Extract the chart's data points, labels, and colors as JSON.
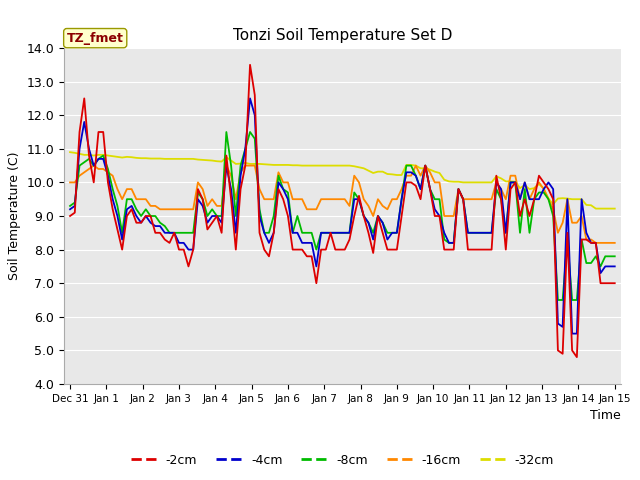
{
  "title": "Tonzi Soil Temperature Set D",
  "xlabel": "Time",
  "ylabel": "Soil Temperature (C)",
  "ylim": [
    4.0,
    14.0
  ],
  "yticks": [
    4.0,
    5.0,
    6.0,
    7.0,
    8.0,
    9.0,
    10.0,
    11.0,
    12.0,
    13.0,
    14.0
  ],
  "legend_label": "TZ_fmet",
  "series_colors": {
    "-2cm": "#dd0000",
    "-4cm": "#0000cc",
    "-8cm": "#00bb00",
    "-16cm": "#ff8800",
    "-32cm": "#dddd00"
  },
  "legend_colors": [
    "#dd0000",
    "#0000cc",
    "#00bb00",
    "#ff8800",
    "#dddd00"
  ],
  "legend_labels": [
    "-2cm",
    "-4cm",
    "-8cm",
    "-16cm",
    "-32cm"
  ],
  "xtick_labels": [
    "Dec 31",
    "Jan 1",
    "Jan 2",
    "Jan 3",
    "Jan 4",
    "Jan 5",
    "Jan 6",
    "Jan 7",
    "Jan 8",
    "Jan 9",
    "Jan 10",
    "Jan 11",
    "Jan 12",
    "Jan 13",
    "Jan 14",
    "Jan 15"
  ],
  "data_2cm": [
    9.0,
    9.1,
    11.5,
    12.5,
    10.8,
    10.0,
    11.5,
    11.5,
    10.0,
    9.2,
    8.6,
    8.0,
    9.0,
    9.2,
    8.8,
    8.8,
    9.0,
    9.0,
    8.5,
    8.5,
    8.3,
    8.2,
    8.5,
    8.0,
    8.0,
    7.5,
    8.0,
    9.8,
    9.5,
    8.6,
    8.8,
    9.0,
    8.5,
    10.8,
    9.5,
    8.0,
    9.8,
    10.5,
    13.5,
    12.6,
    8.5,
    8.0,
    7.8,
    8.5,
    9.8,
    9.5,
    9.0,
    8.0,
    8.0,
    8.0,
    7.8,
    7.8,
    7.0,
    8.0,
    8.0,
    8.5,
    8.0,
    8.0,
    8.0,
    8.3,
    9.0,
    9.6,
    9.0,
    8.5,
    7.9,
    9.0,
    8.5,
    8.0,
    8.0,
    8.0,
    9.0,
    10.0,
    10.0,
    9.9,
    9.5,
    10.5,
    9.8,
    9.0,
    9.0,
    8.0,
    8.0,
    8.0,
    9.8,
    9.5,
    8.0,
    8.0,
    8.0,
    8.0,
    8.0,
    8.0,
    10.2,
    9.5,
    8.0,
    9.8,
    10.0,
    9.0,
    9.5,
    9.0,
    9.5,
    10.2,
    10.0,
    9.8,
    9.5,
    5.0,
    4.9,
    8.5,
    5.0,
    4.8,
    8.3,
    8.3,
    8.2,
    8.2,
    7.0,
    7.0,
    7.0,
    7.0
  ],
  "data_4cm": [
    9.2,
    9.3,
    11.0,
    11.8,
    11.0,
    10.5,
    10.7,
    10.7,
    10.2,
    9.5,
    9.0,
    8.3,
    9.2,
    9.3,
    9.0,
    8.8,
    9.0,
    8.8,
    8.7,
    8.7,
    8.5,
    8.5,
    8.5,
    8.2,
    8.2,
    8.0,
    8.0,
    9.5,
    9.3,
    8.8,
    9.0,
    9.0,
    8.8,
    10.5,
    9.8,
    8.5,
    10.2,
    11.0,
    12.5,
    12.0,
    9.0,
    8.5,
    8.2,
    8.5,
    10.0,
    9.8,
    9.5,
    8.5,
    8.5,
    8.2,
    8.2,
    8.2,
    7.5,
    8.5,
    8.5,
    8.5,
    8.5,
    8.5,
    8.5,
    8.5,
    9.5,
    9.5,
    9.0,
    8.8,
    8.3,
    9.0,
    8.8,
    8.3,
    8.5,
    8.5,
    9.5,
    10.3,
    10.3,
    10.2,
    9.8,
    10.5,
    9.8,
    9.2,
    9.0,
    8.5,
    8.2,
    8.2,
    9.8,
    9.5,
    8.5,
    8.5,
    8.5,
    8.5,
    8.5,
    8.5,
    10.0,
    9.8,
    8.5,
    10.0,
    10.0,
    9.5,
    10.0,
    9.5,
    9.5,
    9.5,
    9.8,
    10.0,
    9.8,
    5.8,
    5.7,
    9.5,
    5.5,
    5.5,
    9.5,
    8.5,
    8.2,
    8.2,
    7.3,
    7.5,
    7.5,
    7.5
  ],
  "data_8cm": [
    9.3,
    9.4,
    10.5,
    10.6,
    10.7,
    10.5,
    10.7,
    10.8,
    10.4,
    9.8,
    9.3,
    8.5,
    9.5,
    9.5,
    9.2,
    9.0,
    9.2,
    9.0,
    9.0,
    8.8,
    8.7,
    8.5,
    8.5,
    8.5,
    8.5,
    8.5,
    8.5,
    9.7,
    9.5,
    9.0,
    9.2,
    9.0,
    9.0,
    11.5,
    10.5,
    9.0,
    10.5,
    11.0,
    11.5,
    11.3,
    9.2,
    8.5,
    8.5,
    9.0,
    10.2,
    9.8,
    9.7,
    8.5,
    9.0,
    8.5,
    8.5,
    8.5,
    8.0,
    8.5,
    8.5,
    8.5,
    8.5,
    8.5,
    8.5,
    8.5,
    9.7,
    9.5,
    9.0,
    8.8,
    8.5,
    9.0,
    8.8,
    8.5,
    8.5,
    8.5,
    9.5,
    10.5,
    10.5,
    10.2,
    9.8,
    10.5,
    9.8,
    9.5,
    9.5,
    8.3,
    8.2,
    8.2,
    9.8,
    9.5,
    8.5,
    8.5,
    8.5,
    8.5,
    8.5,
    8.5,
    9.8,
    9.5,
    8.5,
    10.0,
    10.0,
    8.5,
    9.8,
    8.5,
    9.5,
    9.7,
    9.7,
    9.5,
    9.0,
    6.5,
    6.5,
    8.3,
    6.5,
    6.5,
    8.3,
    7.6,
    7.6,
    7.8,
    7.5,
    7.8,
    7.8,
    7.8
  ],
  "data_16cm": [
    10.0,
    10.0,
    10.2,
    10.3,
    10.4,
    10.5,
    10.4,
    10.4,
    10.3,
    10.2,
    9.8,
    9.5,
    9.8,
    9.8,
    9.5,
    9.5,
    9.5,
    9.3,
    9.3,
    9.2,
    9.2,
    9.2,
    9.2,
    9.2,
    9.2,
    9.2,
    9.2,
    10.0,
    9.8,
    9.3,
    9.5,
    9.3,
    9.3,
    10.5,
    10.2,
    9.5,
    10.3,
    10.5,
    10.5,
    10.5,
    9.8,
    9.5,
    9.5,
    9.5,
    10.3,
    10.0,
    10.0,
    9.5,
    9.5,
    9.5,
    9.2,
    9.2,
    9.2,
    9.5,
    9.5,
    9.5,
    9.5,
    9.5,
    9.5,
    9.3,
    10.2,
    10.0,
    9.5,
    9.3,
    9.0,
    9.5,
    9.3,
    9.2,
    9.5,
    9.5,
    9.8,
    10.2,
    10.2,
    10.5,
    10.2,
    10.5,
    10.3,
    10.0,
    10.0,
    9.0,
    9.0,
    9.0,
    9.8,
    9.5,
    9.5,
    9.5,
    9.5,
    9.5,
    9.5,
    9.5,
    10.0,
    9.8,
    9.5,
    10.2,
    10.2,
    9.5,
    10.0,
    9.5,
    9.8,
    10.0,
    9.8,
    9.5,
    9.2,
    8.5,
    8.8,
    9.5,
    8.8,
    8.8,
    9.0,
    8.3,
    8.3,
    8.2,
    8.2,
    8.2,
    8.2,
    8.2
  ],
  "data_32cm": [
    10.9,
    10.88,
    10.85,
    10.82,
    10.82,
    10.8,
    10.82,
    10.82,
    10.8,
    10.78,
    10.76,
    10.74,
    10.76,
    10.75,
    10.73,
    10.72,
    10.72,
    10.71,
    10.71,
    10.71,
    10.7,
    10.7,
    10.7,
    10.7,
    10.7,
    10.7,
    10.7,
    10.68,
    10.67,
    10.66,
    10.65,
    10.63,
    10.62,
    10.75,
    10.65,
    10.55,
    10.56,
    10.58,
    10.55,
    10.55,
    10.55,
    10.54,
    10.53,
    10.52,
    10.52,
    10.52,
    10.52,
    10.51,
    10.51,
    10.5,
    10.5,
    10.5,
    10.5,
    10.5,
    10.5,
    10.5,
    10.5,
    10.5,
    10.5,
    10.5,
    10.48,
    10.45,
    10.42,
    10.35,
    10.28,
    10.32,
    10.32,
    10.25,
    10.24,
    10.22,
    10.22,
    10.52,
    10.52,
    10.5,
    10.42,
    10.42,
    10.38,
    10.32,
    10.28,
    10.08,
    10.03,
    10.02,
    10.02,
    10.0,
    10.0,
    10.0,
    10.0,
    10.0,
    10.0,
    10.0,
    10.18,
    10.12,
    10.03,
    10.03,
    10.02,
    9.83,
    9.92,
    9.8,
    9.83,
    9.95,
    9.82,
    9.52,
    9.35,
    9.52,
    9.53,
    9.52,
    9.5,
    9.5,
    9.5,
    9.33,
    9.32,
    9.22,
    9.22,
    9.22,
    9.22,
    9.22
  ]
}
